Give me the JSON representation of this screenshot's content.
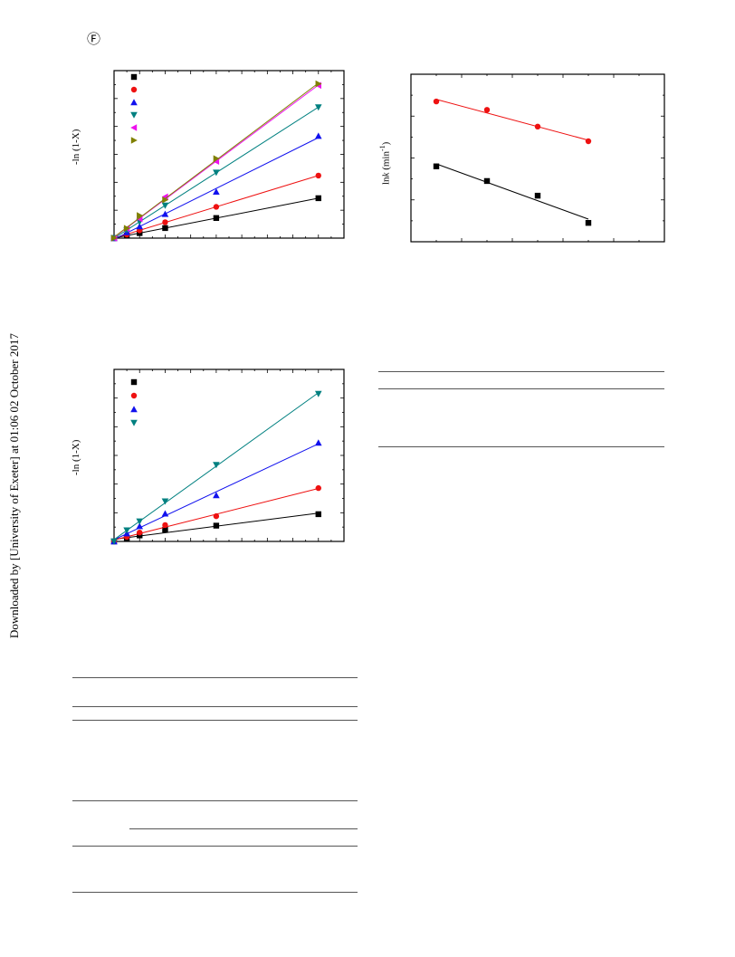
{
  "page": {
    "side_note": "Downloaded by [University of Exeter] at 01:06 02 October 2017",
    "corner_icon": "circled-f-glyph",
    "corner_glyph": "Ⓕ"
  },
  "figures": {
    "fig_a": {
      "ylabel": "-ln (1-X)"
    },
    "fig_b": {
      "ylabel": "lnk (min⁻¹)",
      "ylabel_main": "ln",
      "ylabel_italic": "k",
      "ylabel_rest": " (min",
      "ylabel_sup": "-1",
      "ylabel_close": ")"
    },
    "fig_c": {
      "ylabel": "-ln (1-X)"
    }
  },
  "chart_data": [
    {
      "type": "scatter",
      "id": "fig_a",
      "xlabel": "",
      "ylabel": "-ln (1-X)",
      "x_range": [
        0,
        18
      ],
      "y_range": [
        0,
        6
      ],
      "series": [
        {
          "color": "#000000",
          "marker": "square",
          "x": [
            0,
            1,
            2,
            4,
            8,
            16
          ],
          "y": [
            0,
            0.09,
            0.18,
            0.36,
            0.72,
            1.43
          ]
        },
        {
          "color": "#ee1111",
          "marker": "circle",
          "x": [
            0,
            1,
            2,
            4,
            8,
            16
          ],
          "y": [
            0,
            0.13,
            0.28,
            0.57,
            1.12,
            2.24
          ]
        },
        {
          "color": "#1111ee",
          "marker": "triangle-up",
          "x": [
            0,
            1,
            2,
            4,
            8,
            16
          ],
          "y": [
            0,
            0.21,
            0.42,
            0.86,
            1.66,
            3.66
          ]
        },
        {
          "color": "#008080",
          "marker": "triangle-down",
          "x": [
            0,
            1,
            2,
            4,
            8,
            16
          ],
          "y": [
            0,
            0.29,
            0.58,
            1.17,
            2.35,
            4.69
          ]
        },
        {
          "color": "#ee11ee",
          "marker": "triangle-left",
          "x": [
            0,
            1,
            2,
            4,
            8,
            16
          ],
          "y": [
            0,
            0.35,
            0.69,
            1.48,
            2.75,
            5.47
          ]
        },
        {
          "color": "#808000",
          "marker": "triangle-right",
          "x": [
            0,
            1,
            2,
            4,
            8,
            16
          ],
          "y": [
            0,
            0.35,
            0.81,
            1.37,
            2.85,
            5.53
          ]
        }
      ]
    },
    {
      "type": "scatter",
      "id": "fig_b",
      "xlabel": "",
      "ylabel": "lnk (min⁻¹)",
      "x_range": [
        0,
        5
      ],
      "y_range": [
        0,
        4
      ],
      "series": [
        {
          "color": "#ee1111",
          "marker": "circle",
          "x": [
            0.5,
            1.5,
            2.5,
            3.5
          ],
          "y": [
            3.35,
            3.15,
            2.75,
            2.4
          ]
        },
        {
          "color": "#000000",
          "marker": "square",
          "x": [
            0.5,
            1.5,
            2.5,
            3.5
          ],
          "y": [
            1.8,
            1.45,
            1.1,
            0.45
          ]
        }
      ]
    },
    {
      "type": "scatter",
      "id": "fig_c",
      "xlabel": "",
      "ylabel": "-ln (1-X)",
      "x_range": [
        0,
        18
      ],
      "y_range": [
        0,
        6
      ],
      "series": [
        {
          "color": "#000000",
          "marker": "square",
          "x": [
            0,
            1,
            2,
            4,
            8,
            16
          ],
          "y": [
            0,
            0.1,
            0.21,
            0.41,
            0.55,
            0.95
          ]
        },
        {
          "color": "#ee1111",
          "marker": "circle",
          "x": [
            0,
            1,
            2,
            4,
            8,
            16
          ],
          "y": [
            0,
            0.16,
            0.31,
            0.57,
            0.88,
            1.86
          ]
        },
        {
          "color": "#1111ee",
          "marker": "triangle-up",
          "x": [
            0,
            1,
            2,
            4,
            8,
            16
          ],
          "y": [
            0,
            0.28,
            0.53,
            0.97,
            1.61,
            3.44
          ]
        },
        {
          "color": "#008080",
          "marker": "triangle-down",
          "x": [
            0,
            1,
            2,
            4,
            8,
            16
          ],
          "y": [
            0,
            0.39,
            0.7,
            1.4,
            2.67,
            5.15
          ]
        }
      ]
    }
  ]
}
